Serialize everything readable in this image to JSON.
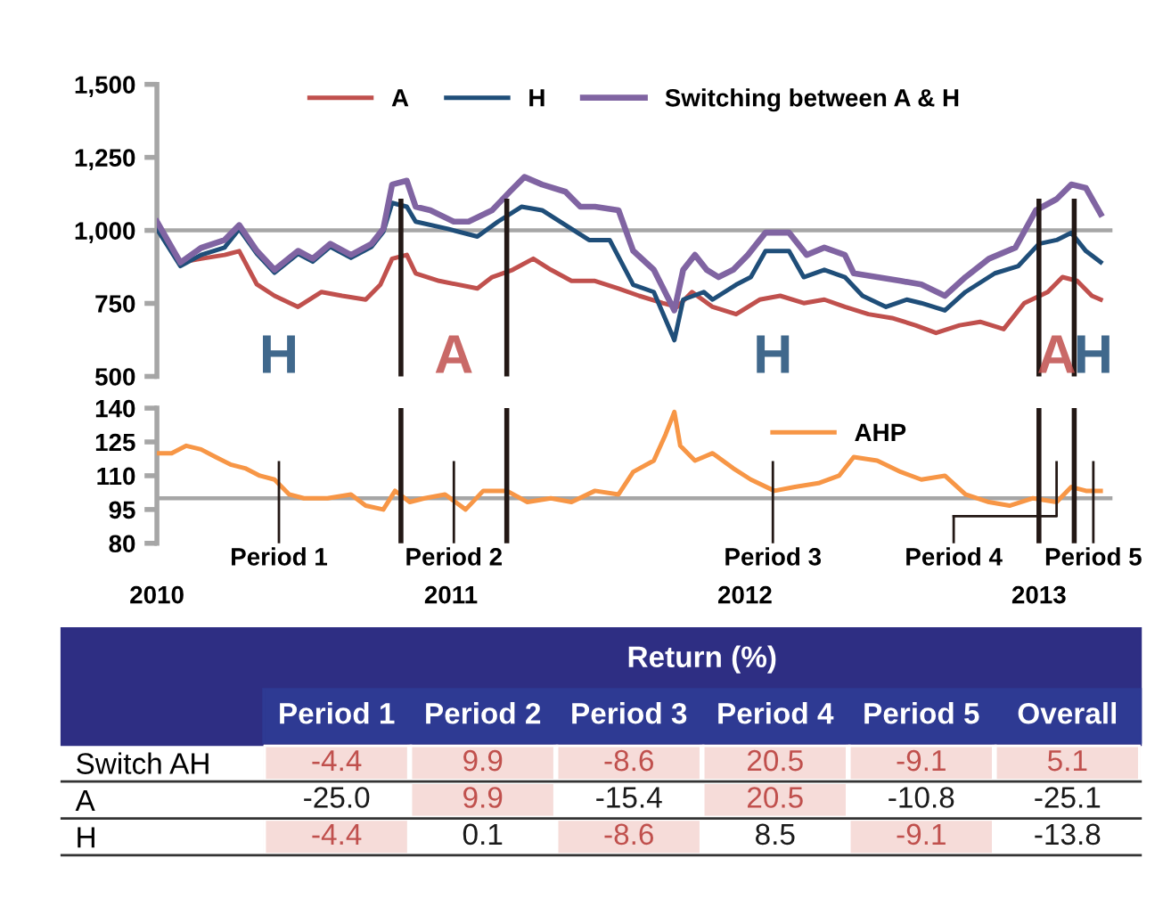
{
  "chart_data": [
    {
      "type": "line",
      "tick_labels": "y",
      "legend": "top",
      "grid": false,
      "xlim": [
        2010,
        2013.25
      ],
      "ylim": [
        500,
        1500
      ],
      "yticks": [
        500,
        {
          "value": 750,
          "label": "750"
        },
        {
          "value": 1000,
          "label": "1,000"
        },
        {
          "value": 1250,
          "label": "1,250"
        },
        {
          "value": 1500,
          "label": "1,500"
        }
      ],
      "ref_lines": [
        {
          "axis": "y",
          "value": 1000,
          "color": "#a6a6a6"
        },
        {
          "axis": "x",
          "value": 2010.83,
          "color": "#231815"
        },
        {
          "axis": "x",
          "value": 2011.19,
          "color": "#231815"
        },
        {
          "axis": "x",
          "value": 2013.0,
          "color": "#231815"
        },
        {
          "axis": "x",
          "value": 2013.12,
          "color": "#231815"
        }
      ],
      "annotations": [
        "H",
        "A",
        "H",
        "A",
        "H"
      ],
      "series": [
        {
          "name": "A",
          "color": "#c0504d",
          "x": [
            2010,
            2010.08,
            2010.15,
            2010.23,
            2010.28,
            2010.34,
            2010.4,
            2010.48,
            2010.56,
            2010.63,
            2010.71,
            2010.76,
            2010.8,
            2010.85,
            2010.88,
            2010.96,
            2011.09,
            2011.14,
            2011.21,
            2011.28,
            2011.34,
            2011.41,
            2011.49,
            2011.57,
            2011.64,
            2011.72,
            2011.77,
            2011.82,
            2011.89,
            2011.97,
            2012.05,
            2012.12,
            2012.2,
            2012.27,
            2012.34,
            2012.42,
            2012.5,
            2012.58,
            2012.65,
            2012.73,
            2012.8,
            2012.88,
            2012.95,
            2013.03,
            2013.08,
            2013.13,
            2013.18,
            2013.21
          ],
          "values": [
            1005,
            890,
            903,
            916,
            929,
            815,
            776,
            738,
            789,
            776,
            763,
            814,
            903,
            916,
            853,
            827,
            801,
            840,
            865,
            903,
            865,
            827,
            827,
            801,
            776,
            751,
            738,
            789,
            738,
            713,
            763,
            776,
            751,
            763,
            738,
            713,
            700,
            675,
            649,
            675,
            687,
            662,
            751,
            789,
            840,
            827,
            776,
            763
          ]
        },
        {
          "name": "H",
          "color": "#1f4e79",
          "x": [
            2010,
            2010.08,
            2010.15,
            2010.23,
            2010.28,
            2010.34,
            2010.4,
            2010.48,
            2010.53,
            2010.59,
            2010.66,
            2010.73,
            2010.77,
            2010.8,
            2010.85,
            2010.88,
            2010.99,
            2011.09,
            2011.16,
            2011.24,
            2011.31,
            2011.41,
            2011.47,
            2011.54,
            2011.62,
            2011.69,
            2011.76,
            2011.79,
            2011.86,
            2011.89,
            2011.97,
            2012.02,
            2012.07,
            2012.15,
            2012.2,
            2012.27,
            2012.34,
            2012.4,
            2012.48,
            2012.55,
            2012.6,
            2012.68,
            2012.75,
            2012.85,
            2012.93,
            2013.0,
            2013.06,
            2013.11,
            2013.16,
            2013.21
          ],
          "values": [
            1005,
            878,
            916,
            941,
            1005,
            920,
            855,
            920,
            893,
            944,
            906,
            944,
            995,
            1094,
            1081,
            1030,
            1005,
            979,
            1030,
            1081,
            1069,
            1005,
            967,
            967,
            814,
            789,
            624,
            763,
            789,
            763,
            814,
            840,
            929,
            929,
            840,
            865,
            840,
            776,
            738,
            763,
            751,
            726,
            789,
            853,
            878,
            954,
            967,
            992,
            929,
            891
          ]
        },
        {
          "name": "Switching between A & H",
          "color": "#8064a2",
          "x": [
            2010,
            2010.08,
            2010.15,
            2010.23,
            2010.28,
            2010.34,
            2010.4,
            2010.48,
            2010.53,
            2010.59,
            2010.66,
            2010.73,
            2010.77,
            2010.8,
            2010.85,
            2010.88,
            2010.93,
            2011.01,
            2011.06,
            2011.14,
            2011.2,
            2011.25,
            2011.31,
            2011.39,
            2011.44,
            2011.49,
            2011.57,
            2011.62,
            2011.69,
            2011.76,
            2011.79,
            2011.83,
            2011.87,
            2011.91,
            2011.96,
            2012.01,
            2012.07,
            2012.15,
            2012.21,
            2012.27,
            2012.34,
            2012.37,
            2012.45,
            2012.53,
            2012.6,
            2012.68,
            2012.75,
            2012.83,
            2012.92,
            2012.99,
            2013.06,
            2013.11,
            2013.16,
            2013.21
          ],
          "values": [
            1030,
            890,
            940,
            967,
            1018,
            930,
            865,
            930,
            903,
            954,
            916,
            954,
            1005,
            1157,
            1170,
            1081,
            1069,
            1030,
            1030,
            1069,
            1132,
            1183,
            1157,
            1132,
            1081,
            1081,
            1069,
            930,
            865,
            726,
            865,
            916,
            865,
            840,
            865,
            916,
            992,
            992,
            916,
            941,
            916,
            853,
            840,
            827,
            815,
            776,
            840,
            903,
            941,
            1069,
            1107,
            1157,
            1145,
            1056
          ]
        }
      ]
    },
    {
      "type": "line",
      "legend": "top right",
      "grid": false,
      "xlim": [
        2010,
        2013.25
      ],
      "xticks": [
        2010,
        2011,
        2012,
        2013
      ],
      "ylim": [
        80,
        140
      ],
      "yticks": [
        80,
        95,
        110,
        125,
        140
      ],
      "ref_lines": [
        {
          "axis": "y",
          "value": 100,
          "color": "#a6a6a6"
        },
        {
          "axis": "x",
          "value": 2010.83,
          "color": "#231815"
        },
        {
          "axis": "x",
          "value": 2011.19,
          "color": "#231815"
        },
        {
          "axis": "x",
          "value": 2013.0,
          "color": "#231815"
        },
        {
          "axis": "x",
          "value": 2013.12,
          "color": "#231815"
        }
      ],
      "annotations": [
        "Period 1",
        "Period 2",
        "Period 3",
        "Period 4",
        "Period 5"
      ],
      "series": [
        {
          "name": "AHP",
          "color": "#f79646",
          "x": [
            2010,
            2010.05,
            2010.1,
            2010.15,
            2010.2,
            2010.25,
            2010.3,
            2010.35,
            2010.4,
            2010.45,
            2010.5,
            2010.58,
            2010.66,
            2010.71,
            2010.77,
            2010.81,
            2010.86,
            2010.91,
            2010.98,
            2011.05,
            2011.11,
            2011.19,
            2011.26,
            2011.34,
            2011.41,
            2011.49,
            2011.57,
            2011.62,
            2011.69,
            2011.73,
            2011.76,
            2011.78,
            2011.83,
            2011.89,
            2011.96,
            2012.02,
            2012.1,
            2012.17,
            2012.25,
            2012.32,
            2012.37,
            2012.45,
            2012.53,
            2012.6,
            2012.68,
            2012.75,
            2012.83,
            2012.9,
            2012.98,
            2013.06,
            2013.11,
            2013.16,
            2013.21
          ],
          "values": [
            120,
            120,
            123.3,
            121.7,
            118.3,
            115,
            113.3,
            110,
            108.3,
            101.7,
            100,
            100,
            101.7,
            96.7,
            95,
            103.3,
            98.3,
            100,
            101.7,
            95,
            103.3,
            103.3,
            98.3,
            100,
            98.3,
            103.3,
            101.7,
            111.7,
            116.7,
            128.3,
            138.3,
            123.3,
            116.7,
            120,
            113.3,
            108.3,
            103.3,
            105,
            106.7,
            110,
            118.3,
            116.7,
            111.7,
            108.3,
            110,
            101.7,
            98.3,
            96.7,
            100,
            98.3,
            105,
            103.3,
            103.3
          ]
        }
      ]
    },
    {
      "type": "heatmap",
      "title": "Return (%)",
      "data_labels": true,
      "categories": [
        "Period 1",
        "Period 2",
        "Period 3",
        "Period 4",
        "Period 5",
        "Overall"
      ],
      "y_categories": [
        "Switch AH",
        "A",
        "H"
      ],
      "cells": [
        [
          -4.4,
          9.9,
          -8.6,
          20.5,
          -9.1,
          5.1
        ],
        [
          -25.0,
          9.9,
          -15.4,
          20.5,
          -10.8,
          -25.1
        ],
        [
          -4.4,
          0.1,
          -8.6,
          8.5,
          -9.1,
          -13.8
        ]
      ],
      "cell_labels": [
        [
          "-4.4",
          "9.9",
          "-8.6",
          "20.5",
          "-9.1",
          "5.1"
        ],
        [
          "-25.0",
          "9.9",
          "-15.4",
          "20.5",
          "-10.8",
          "-25.1"
        ],
        [
          "-4.4",
          "0.1",
          "-8.6",
          "8.5",
          "-9.1",
          "-13.8"
        ]
      ],
      "colors": [
        [
          "#f6dcd9",
          "#f6dcd9",
          "#f6dcd9",
          "#f6dcd9",
          "#f6dcd9",
          "#f6dcd9"
        ],
        [
          "#ffffff",
          "#f6dcd9",
          "#ffffff",
          "#f6dcd9",
          "#ffffff",
          "#ffffff"
        ],
        [
          "#f6dcd9",
          "#ffffff",
          "#f6dcd9",
          "#ffffff",
          "#f6dcd9",
          "#ffffff"
        ]
      ]
    }
  ]
}
